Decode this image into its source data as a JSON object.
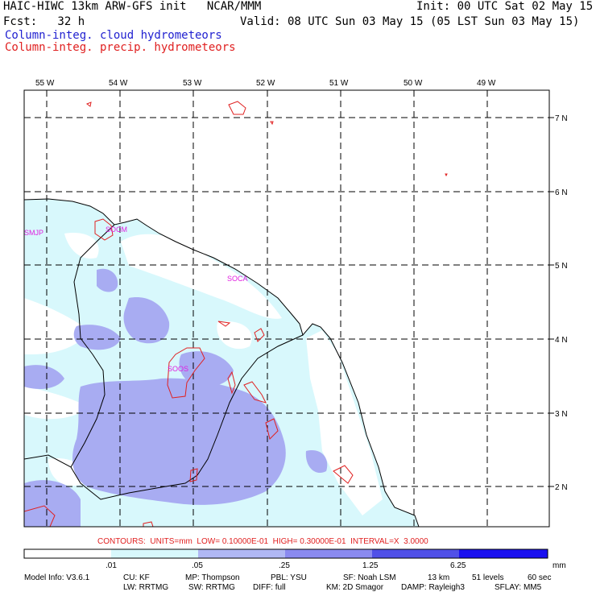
{
  "header": {
    "model_line": "HAIC-HIWC 13km ARW-GFS init   NCAR/MMM",
    "init_line": "Init: 00 UTC Sat 02 May 15",
    "fcst_line": "Fcst:   32 h",
    "valid_line": "Valid: 08 UTC Sun 03 May 15 (05 LST Sun 03 May 15)",
    "field1": "Column-integ. cloud hydrometeors",
    "field2": "Column-integ. precip. hydrometeors",
    "field1_color": "#1f1fd0",
    "field2_color": "#e02020"
  },
  "map": {
    "lon_labels": [
      "55 W",
      "54 W",
      "53 W",
      "52 W",
      "51 W",
      "50 W",
      "49 W"
    ],
    "lat_labels": [
      "7 N",
      "6 N",
      "5 N",
      "4 N",
      "3 N",
      "2 N"
    ],
    "stations": [
      "SMJP",
      "SOCM",
      "SOCA",
      "SOOS"
    ],
    "station_color": "#e020e0",
    "coast_color": "#000000",
    "grid_style": "dashed"
  },
  "contour_info": "CONTOURS:  UNITS=mm  LOW= 0.10000E-01  HIGH= 0.30000E-01  INTERVAL=X  3.0000",
  "colorbar": {
    "labels": [
      ".01",
      ".05",
      ".25",
      "1.25",
      "6.25"
    ],
    "units": "mm",
    "colors": [
      "#ffffff",
      "#d8f8fc",
      "#b0b8f4",
      "#8a8af0",
      "#5050e8",
      "#1a10f0"
    ]
  },
  "footer": {
    "line1": [
      "Model Info: V3.6.1",
      "CU: KF",
      "MP: Thompson",
      "PBL: YSU",
      "SF: Noah LSM",
      "13 km",
      "51 levels",
      "60 sec"
    ],
    "line2": [
      "LW: RRTMG",
      "SW: RRTMG",
      "DIFF: full",
      "KM: 2D Smagor",
      "DAMP: Rayleigh3",
      "SFLAY: MM5"
    ]
  }
}
